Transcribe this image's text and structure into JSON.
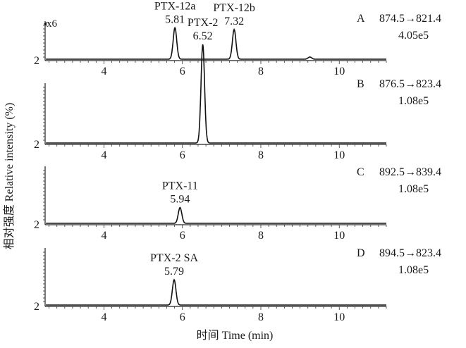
{
  "chart_data": {
    "type": "line",
    "xlabel": "时间 Time (min)",
    "ylabel": "相对强度 Relative intensity (%)",
    "xlim": [
      2.5,
      11.2
    ],
    "x_ticks": [
      "4",
      "6",
      "8",
      "10"
    ],
    "y_tick_label": "2",
    "scale_marker": "x6",
    "panels": [
      {
        "id": "A",
        "transition": "874.5→821.4",
        "intensity": "4.05e5",
        "peaks": [
          {
            "name": "PTX-12a",
            "rt_label": "5.81",
            "rt": 5.81,
            "height": 0.72
          },
          {
            "name": "PTX-12b",
            "rt_label": "7.32",
            "rt": 7.32,
            "height": 0.68
          },
          {
            "name": "",
            "rt_label": "",
            "rt": 9.25,
            "height": 0.05
          }
        ]
      },
      {
        "id": "B",
        "transition": "876.5→823.4",
        "intensity": "1.08e5",
        "peaks": [
          {
            "name": "PTX-2",
            "rt_label": "6.52",
            "rt": 6.52,
            "height": 1.0
          }
        ]
      },
      {
        "id": "C",
        "transition": "892.5→839.4",
        "intensity": "1.08e5",
        "peaks": [
          {
            "name": "PTX-11",
            "rt_label": "5.94",
            "rt": 5.94,
            "height": 0.28
          }
        ]
      },
      {
        "id": "D",
        "transition": "894.5→823.4",
        "intensity": "1.08e5",
        "peaks": [
          {
            "name": "PTX-2 SA",
            "rt_label": "5.79",
            "rt": 5.79,
            "height": 0.45
          }
        ]
      }
    ]
  }
}
